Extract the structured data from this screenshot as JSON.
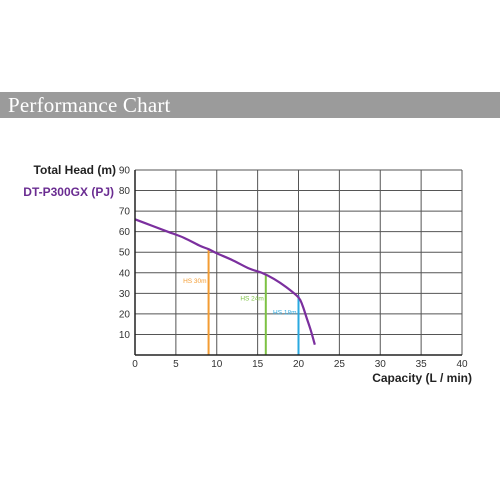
{
  "header": {
    "title": "Performance Chart"
  },
  "chart_data": {
    "type": "line",
    "title": "Performance Chart",
    "ylabel": "Total Head (m)",
    "xlabel": "Capacity (L / min)",
    "xlim": [
      0,
      40
    ],
    "ylim": [
      0,
      90
    ],
    "x_ticks": [
      "0",
      "5",
      "10",
      "15",
      "20",
      "25",
      "30",
      "35",
      "40"
    ],
    "y_ticks": [
      "10",
      "20",
      "30",
      "40",
      "50",
      "60",
      "70",
      "80",
      "90"
    ],
    "grid": true,
    "series": [
      {
        "name": "DT-P300GX (PJ)",
        "color": "#7b2f9e",
        "x": [
          0,
          2,
          4,
          6,
          8,
          9,
          10,
          12,
          14,
          15.5,
          17,
          18.5,
          20,
          20.5,
          21,
          21.5,
          22
        ],
        "y": [
          66,
          63,
          60,
          57,
          53,
          51.5,
          49.5,
          46,
          42,
          40,
          37,
          33,
          28,
          24,
          18,
          12,
          5
        ]
      }
    ],
    "annotations": [
      {
        "label": "HS 30m",
        "x": 9,
        "y": 51.5,
        "color": "#f39c32"
      },
      {
        "label": "HS 24m",
        "x": 16,
        "y": 39,
        "color": "#7dc243"
      },
      {
        "label": "HS 18m",
        "x": 20,
        "y": 29,
        "color": "#2aa9e0"
      }
    ]
  }
}
